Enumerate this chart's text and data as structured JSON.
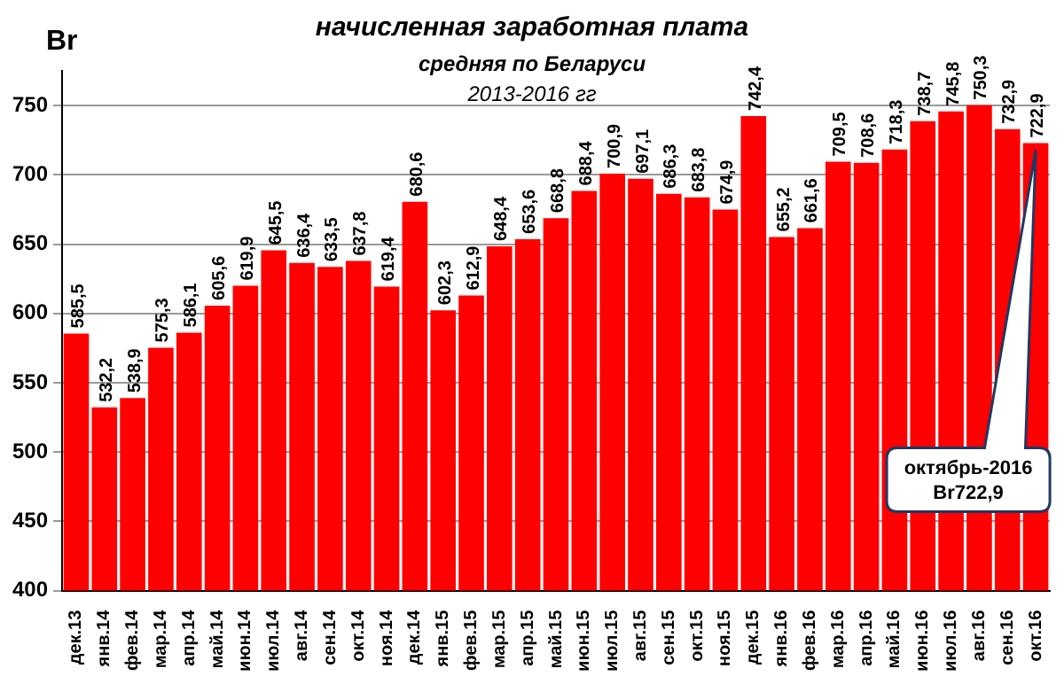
{
  "chart_data": {
    "type": "bar",
    "title": "начисленная заработная плата",
    "subtitle": "средняя по Беларуси",
    "ylabel": "Br",
    "categories": [
      "дек.13",
      "янв.14",
      "фев.14",
      "мар.14",
      "апр.14",
      "май.14",
      "июн.14",
      "июл.14",
      "авг.14",
      "сен.14",
      "окт.14",
      "ноя.14",
      "дек.14",
      "янв.15",
      "фев.15",
      "мар.15",
      "апр.15",
      "май.15",
      "июн.15",
      "июл.15",
      "авг.15",
      "сен.15",
      "окт.15",
      "ноя.15",
      "дек.15",
      "янв.16",
      "фев.16",
      "мар.16",
      "апр.16",
      "май.16",
      "июн.16",
      "июл.16",
      "авг.16",
      "сен.16",
      "окт.16"
    ],
    "values": [
      585.5,
      532.2,
      538.9,
      575.3,
      586.1,
      605.6,
      619.9,
      645.5,
      636.4,
      633.5,
      637.8,
      619.4,
      680.6,
      602.3,
      612.9,
      648.4,
      653.6,
      668.8,
      688.4,
      700.9,
      697.1,
      686.3,
      683.8,
      674.9,
      742.4,
      655.2,
      661.6,
      709.5,
      708.6,
      718.3,
      738.7,
      745.8,
      750.3,
      732.9,
      722.9
    ],
    "value_labels": [
      "585,5",
      "532,2",
      "538,9",
      "575,3",
      "586,1",
      "605,6",
      "619,9",
      "645,5",
      "636,4",
      "633,5",
      "637,8",
      "619,4",
      "680,6",
      "602,3",
      "612,9",
      "648,4",
      "653,6",
      "668,8",
      "688,4",
      "700,9",
      "697,1",
      "686,3",
      "683,8",
      "674,9",
      "742,4",
      "655,2",
      "661,6",
      "709,5",
      "708,6",
      "718,3",
      "738,7",
      "745,8",
      "750,3",
      "732,9",
      "722,9"
    ],
    "color": "#ff0000",
    "ylim": [
      400,
      775
    ],
    "yticks": [
      400,
      450,
      500,
      550,
      600,
      650,
      700,
      750
    ],
    "grid": "y",
    "legend": false,
    "annotations": [
      "2013-2016 гг",
      "октябрь-2016\nBr722,9"
    ]
  }
}
